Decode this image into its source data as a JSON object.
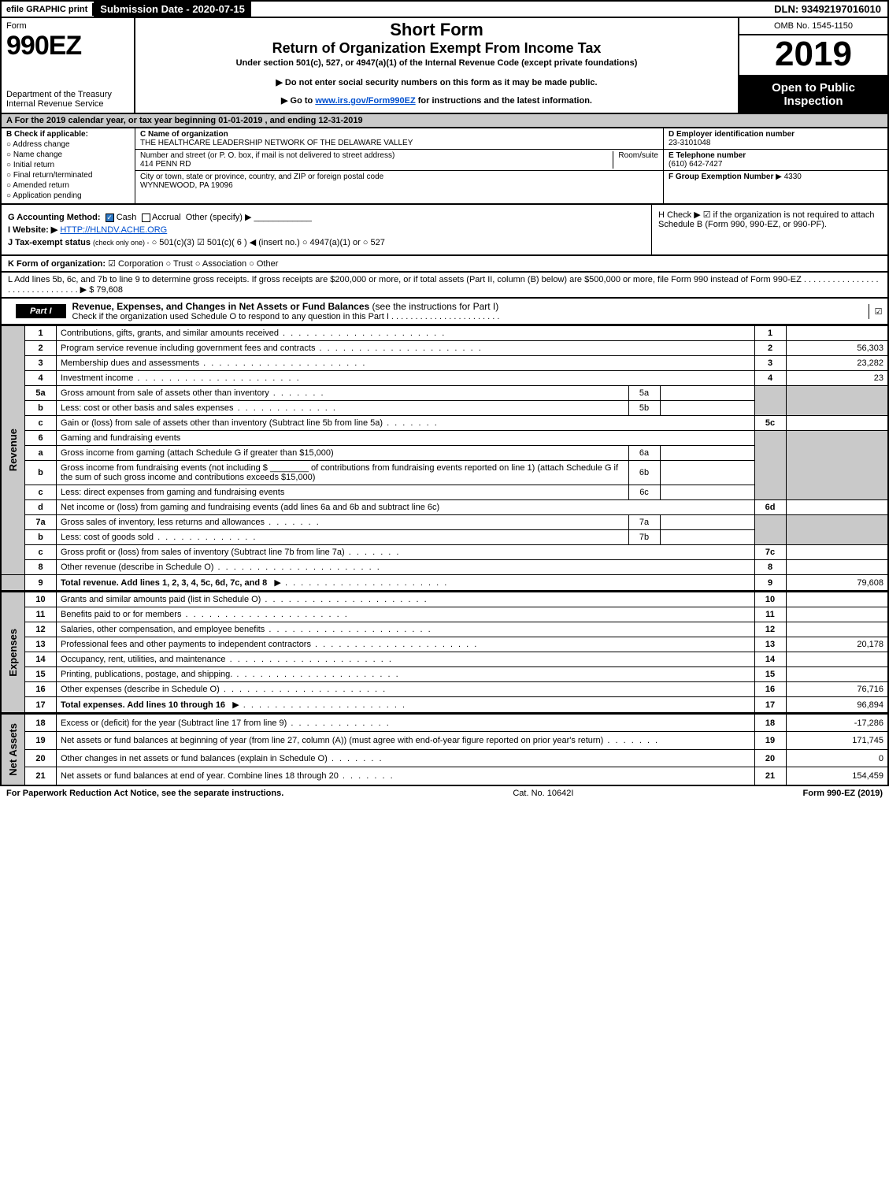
{
  "topbar": {
    "efile": "efile GRAPHIC print",
    "submission": "Submission Date - 2020-07-15",
    "dln": "DLN: 93492197016010"
  },
  "header": {
    "form_label": "Form",
    "form_no": "990EZ",
    "dept": "Department of the Treasury",
    "irs": "Internal Revenue Service",
    "title": "Short Form",
    "subtitle": "Return of Organization Exempt From Income Tax",
    "section": "Under section 501(c), 527, or 4947(a)(1) of the Internal Revenue Code (except private foundations)",
    "donot": "▶ Do not enter social security numbers on this form as it may be made public.",
    "goto_prefix": "▶ Go to ",
    "goto_link": "www.irs.gov/Form990EZ",
    "goto_suffix": " for instructions and the latest information.",
    "omb": "OMB No. 1545-1150",
    "year": "2019",
    "open": "Open to Public Inspection"
  },
  "taxyear": "A For the 2019 calendar year, or tax year beginning 01-01-2019 , and ending 12-31-2019",
  "b": {
    "label": "B Check if applicable:",
    "opts": [
      "Address change",
      "Name change",
      "Initial return",
      "Final return/terminated",
      "Amended return",
      "Application pending"
    ]
  },
  "c": {
    "name_label": "C Name of organization",
    "name": "THE HEALTHCARE LEADERSHIP NETWORK OF THE DELAWARE VALLEY",
    "addr_label": "Number and street (or P. O. box, if mail is not delivered to street address)",
    "room_label": "Room/suite",
    "addr": "414 PENN RD",
    "city_label": "City or town, state or province, country, and ZIP or foreign postal code",
    "city": "WYNNEWOOD, PA  19096"
  },
  "d": {
    "label": "D Employer identification number",
    "value": "23-3101048"
  },
  "e": {
    "label": "E Telephone number",
    "value": "(610) 642-7427"
  },
  "f": {
    "label": "F Group Exemption Number",
    "value": "▶ 4330"
  },
  "g": {
    "label": "G Accounting Method:",
    "cash": "Cash",
    "accrual": "Accrual",
    "other": "Other (specify) ▶"
  },
  "h": {
    "text": "H Check ▶ ☑ if the organization is not required to attach Schedule B (Form 990, 990-EZ, or 990-PF)."
  },
  "i": {
    "label": "I Website: ▶",
    "value": "HTTP://HLNDV.ACHE.ORG"
  },
  "j": {
    "label": "J Tax-exempt status",
    "note": "(check only one) -",
    "opts": "○ 501(c)(3)  ☑ 501(c)( 6 ) ◀ (insert no.)  ○ 4947(a)(1) or  ○ 527"
  },
  "k": {
    "label": "K Form of organization:",
    "opts": "☑ Corporation   ○ Trust   ○ Association   ○ Other"
  },
  "l": {
    "text": "L Add lines 5b, 6c, and 7b to line 9 to determine gross receipts. If gross receipts are $200,000 or more, or if total assets (Part II, column (B) below) are $500,000 or more, file Form 990 instead of Form 990-EZ . . . . . . . . . . . . . . . . . . . . . . . . . . . . . . . ▶ $ 79,608"
  },
  "part1": {
    "tag": "Part I",
    "title": "Revenue, Expenses, and Changes in Net Assets or Fund Balances",
    "title_note": " (see the instructions for Part I)",
    "sub": "Check if the organization used Schedule O to respond to any question in this Part I . . . . . . . . . . . . . . . . . . . . . . .",
    "checked": "☑"
  },
  "vlabels": {
    "rev": "Revenue",
    "exp": "Expenses",
    "na": "Net Assets"
  },
  "lines": {
    "1": {
      "desc": "Contributions, gifts, grants, and similar amounts received",
      "val": ""
    },
    "2": {
      "desc": "Program service revenue including government fees and contracts",
      "val": "56,303"
    },
    "3": {
      "desc": "Membership dues and assessments",
      "val": "23,282"
    },
    "4": {
      "desc": "Investment income",
      "val": "23"
    },
    "5a": {
      "desc": "Gross amount from sale of assets other than inventory",
      "sub": "5a",
      "subval": ""
    },
    "5b": {
      "desc": "Less: cost or other basis and sales expenses",
      "sub": "5b",
      "subval": ""
    },
    "5c": {
      "desc": "Gain or (loss) from sale of assets other than inventory (Subtract line 5b from line 5a)",
      "val": ""
    },
    "6": {
      "desc": "Gaming and fundraising events"
    },
    "6a": {
      "desc": "Gross income from gaming (attach Schedule G if greater than $15,000)",
      "sub": "6a",
      "subval": ""
    },
    "6b": {
      "desc": "Gross income from fundraising events (not including $ ________ of contributions from fundraising events reported on line 1) (attach Schedule G if the sum of such gross income and contributions exceeds $15,000)",
      "sub": "6b",
      "subval": ""
    },
    "6c": {
      "desc": "Less: direct expenses from gaming and fundraising events",
      "sub": "6c",
      "subval": ""
    },
    "6d": {
      "desc": "Net income or (loss) from gaming and fundraising events (add lines 6a and 6b and subtract line 6c)",
      "val": ""
    },
    "7a": {
      "desc": "Gross sales of inventory, less returns and allowances",
      "sub": "7a",
      "subval": ""
    },
    "7b": {
      "desc": "Less: cost of goods sold",
      "sub": "7b",
      "subval": ""
    },
    "7c": {
      "desc": "Gross profit or (loss) from sales of inventory (Subtract line 7b from line 7a)",
      "val": ""
    },
    "8": {
      "desc": "Other revenue (describe in Schedule O)",
      "val": ""
    },
    "9": {
      "desc": "Total revenue. Add lines 1, 2, 3, 4, 5c, 6d, 7c, and 8",
      "val": "79,608",
      "bold": true
    },
    "10": {
      "desc": "Grants and similar amounts paid (list in Schedule O)",
      "val": ""
    },
    "11": {
      "desc": "Benefits paid to or for members",
      "val": ""
    },
    "12": {
      "desc": "Salaries, other compensation, and employee benefits",
      "val": ""
    },
    "13": {
      "desc": "Professional fees and other payments to independent contractors",
      "val": "20,178"
    },
    "14": {
      "desc": "Occupancy, rent, utilities, and maintenance",
      "val": ""
    },
    "15": {
      "desc": "Printing, publications, postage, and shipping.",
      "val": ""
    },
    "16": {
      "desc": "Other expenses (describe in Schedule O)",
      "val": "76,716"
    },
    "17": {
      "desc": "Total expenses. Add lines 10 through 16",
      "val": "96,894",
      "bold": true
    },
    "18": {
      "desc": "Excess or (deficit) for the year (Subtract line 17 from line 9)",
      "val": "-17,286"
    },
    "19": {
      "desc": "Net assets or fund balances at beginning of year (from line 27, column (A)) (must agree with end-of-year figure reported on prior year's return)",
      "val": "171,745"
    },
    "20": {
      "desc": "Other changes in net assets or fund balances (explain in Schedule O)",
      "val": "0"
    },
    "21": {
      "desc": "Net assets or fund balances at end of year. Combine lines 18 through 20",
      "val": "154,459"
    }
  },
  "footer": {
    "paperwork": "For Paperwork Reduction Act Notice, see the separate instructions.",
    "cat": "Cat. No. 10642I",
    "form": "Form 990-EZ (2019)"
  }
}
